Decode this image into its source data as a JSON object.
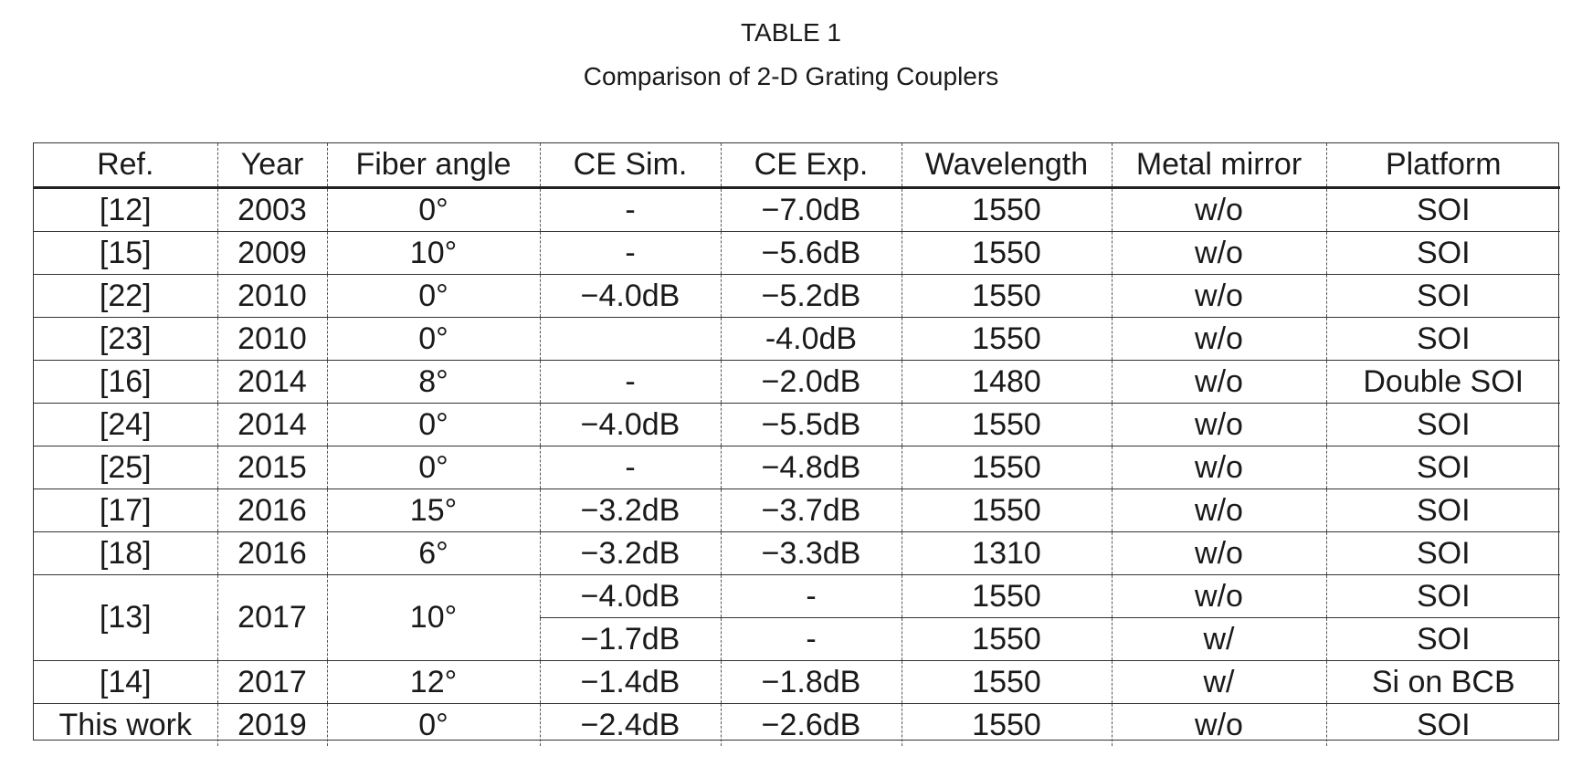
{
  "title_line1": "TABLE 1",
  "title_line2": "Comparison of 2-D Grating Couplers",
  "columns": [
    "Ref.",
    "Year",
    "Fiber angle",
    "CE Sim.",
    "CE Exp.",
    "Wavelength",
    "Metal mirror",
    "Platform"
  ],
  "rows": [
    {
      "ref": "[12]",
      "year": "2003",
      "angle": "0°",
      "ce_sim": "-",
      "ce_exp": "−7.0dB",
      "wavelength": "1550",
      "mirror": "w/o",
      "platform": "SOI"
    },
    {
      "ref": "[15]",
      "year": "2009",
      "angle": "10°",
      "ce_sim": "-",
      "ce_exp": "−5.6dB",
      "wavelength": "1550",
      "mirror": "w/o",
      "platform": "SOI"
    },
    {
      "ref": "[22]",
      "year": "2010",
      "angle": "0°",
      "ce_sim": "−4.0dB",
      "ce_exp": "−5.2dB",
      "wavelength": "1550",
      "mirror": "w/o",
      "platform": "SOI"
    },
    {
      "ref": "[23]",
      "year": "2010",
      "angle": "0°",
      "ce_sim": "",
      "ce_exp": "-4.0dB",
      "wavelength": "1550",
      "mirror": "w/o",
      "platform": "SOI"
    },
    {
      "ref": "[16]",
      "year": "2014",
      "angle": "8°",
      "ce_sim": "-",
      "ce_exp": "−2.0dB",
      "wavelength": "1480",
      "mirror": "w/o",
      "platform": "Double SOI"
    },
    {
      "ref": "[24]",
      "year": "2014",
      "angle": "0°",
      "ce_sim": "−4.0dB",
      "ce_exp": "−5.5dB",
      "wavelength": "1550",
      "mirror": "w/o",
      "platform": "SOI"
    },
    {
      "ref": "[25]",
      "year": "2015",
      "angle": "0°",
      "ce_sim": "-",
      "ce_exp": "−4.8dB",
      "wavelength": "1550",
      "mirror": "w/o",
      "platform": "SOI"
    },
    {
      "ref": "[17]",
      "year": "2016",
      "angle": "15°",
      "ce_sim": "−3.2dB",
      "ce_exp": "−3.7dB",
      "wavelength": "1550",
      "mirror": "w/o",
      "platform": "SOI"
    },
    {
      "ref": "[18]",
      "year": "2016",
      "angle": "6°",
      "ce_sim": "−3.2dB",
      "ce_exp": "−3.3dB",
      "wavelength": "1310",
      "mirror": "w/o",
      "platform": "SOI"
    },
    {
      "ref": "[13]",
      "year": "2017",
      "angle": "10°",
      "ce_sim": "−4.0dB",
      "ce_exp": "-",
      "wavelength": "1550",
      "mirror": "w/o",
      "platform": "SOI"
    },
    {
      "ce_sim": "−1.7dB",
      "ce_exp": "-",
      "wavelength": "1550",
      "mirror": "w/",
      "platform": "SOI"
    },
    {
      "ref": "[14]",
      "year": "2017",
      "angle": "12°",
      "ce_sim": "−1.4dB",
      "ce_exp": "−1.8dB",
      "wavelength": "1550",
      "mirror": "w/",
      "platform": "Si on BCB"
    },
    {
      "ref": "This work",
      "year": "2019",
      "angle": "0°",
      "ce_sim": "−2.4dB",
      "ce_exp": "−2.6dB",
      "wavelength": "1550",
      "mirror": "w/o",
      "platform": "SOI"
    }
  ]
}
